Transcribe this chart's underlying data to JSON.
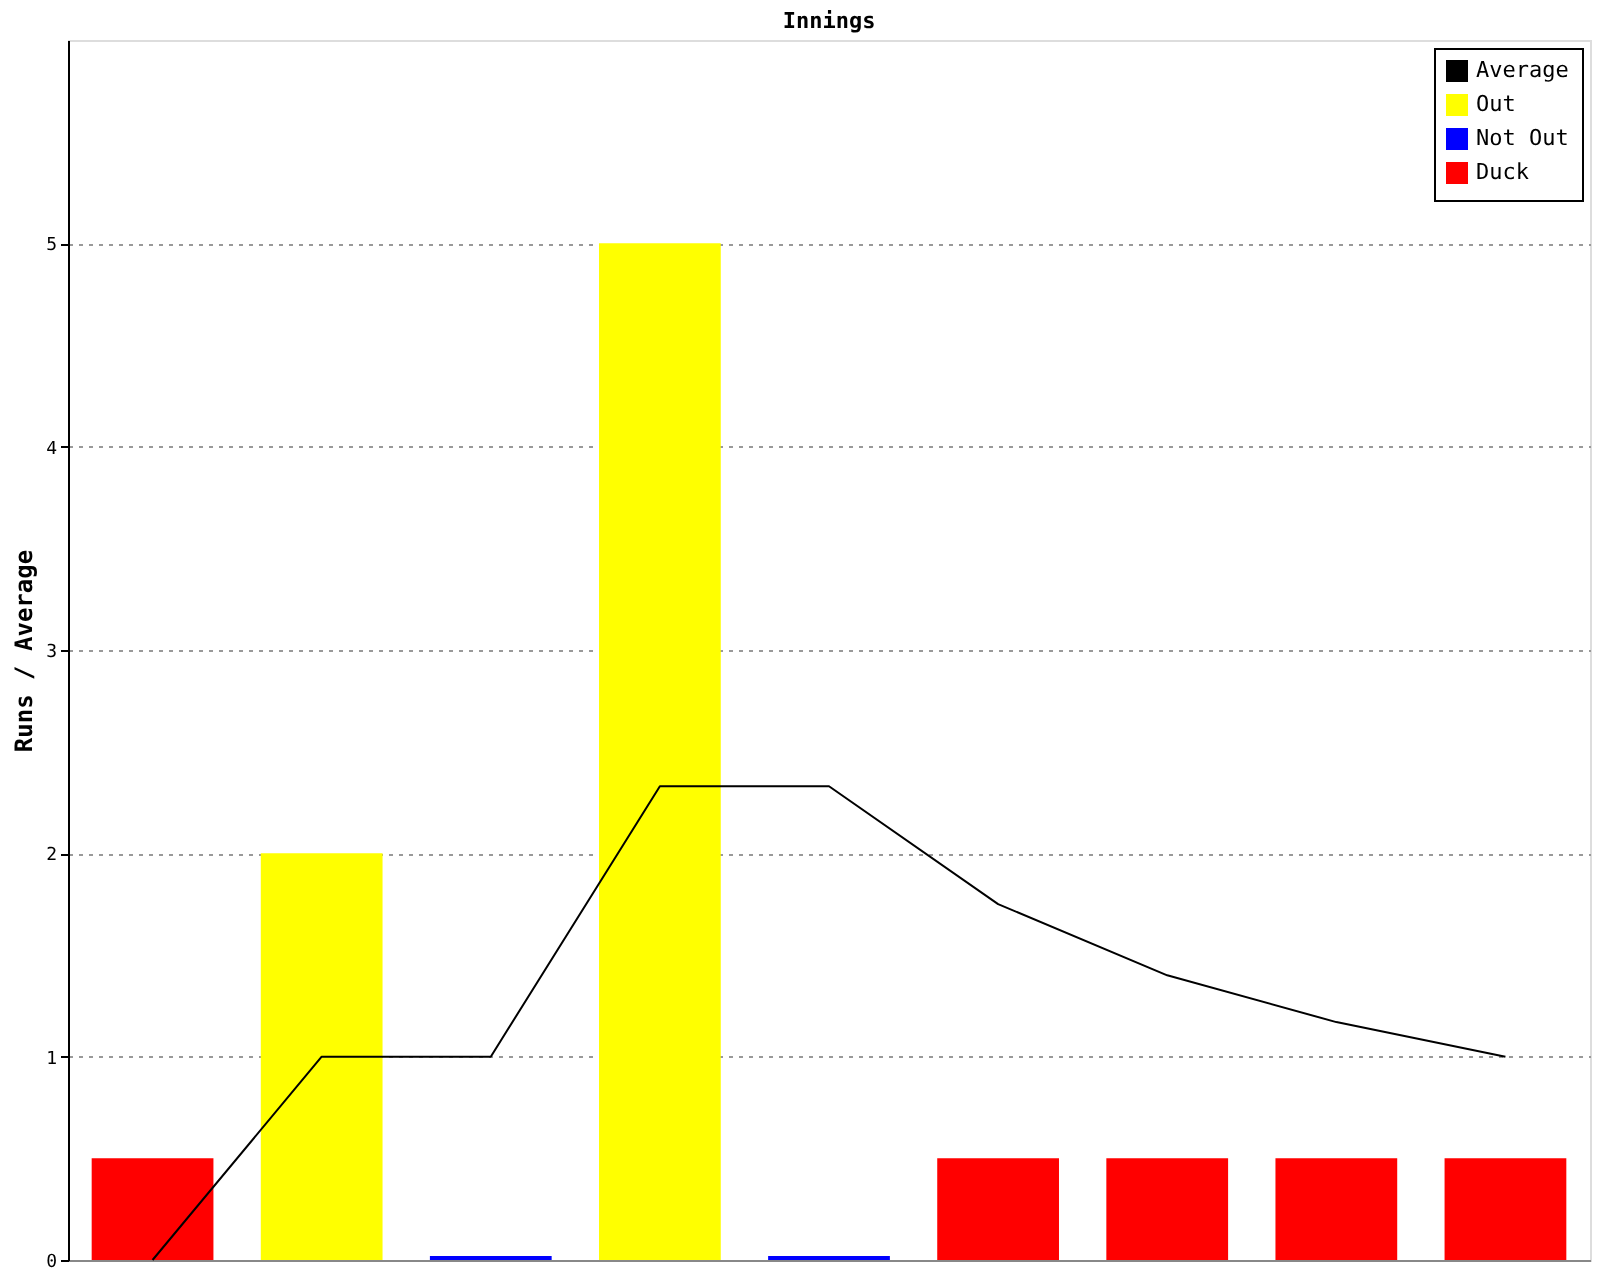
{
  "chart_data": {
    "type": "bar",
    "title": "Innings",
    "ylabel": "Runs / Average",
    "categories": [
      null,
      null,
      null,
      null,
      null,
      null,
      null,
      null,
      null
    ],
    "series": [
      {
        "name": "Average",
        "type": "line",
        "color": "#000000",
        "values": [
          0,
          1,
          1,
          2.33,
          2.33,
          1.75,
          1.4,
          1.17,
          1
        ]
      },
      {
        "name": "Out",
        "color": "#ffff00",
        "values": [
          null,
          2,
          null,
          5,
          null,
          null,
          null,
          null,
          null
        ]
      },
      {
        "name": "Not Out",
        "color": "#0000ff",
        "values": [
          null,
          null,
          0.02,
          null,
          0.02,
          null,
          null,
          null,
          null
        ]
      },
      {
        "name": "Duck",
        "color": "#ff0000",
        "values": [
          0.5,
          null,
          null,
          null,
          null,
          0.5,
          0.5,
          0.5,
          0.5
        ]
      }
    ],
    "ylim": [
      0,
      6
    ],
    "yticks": [
      0,
      1,
      2,
      3,
      4,
      5
    ],
    "grid": "y",
    "legend": "top right",
    "tick_labels": "y",
    "marker": "none",
    "line_style": "solid"
  }
}
